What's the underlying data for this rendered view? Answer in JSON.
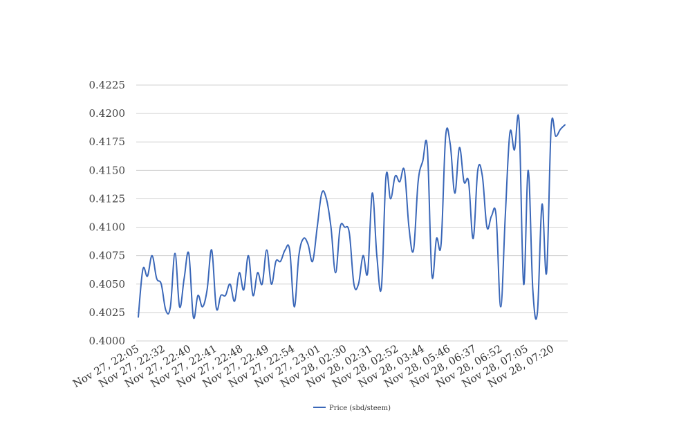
{
  "chart_data": {
    "type": "line",
    "title": "",
    "xlabel": "",
    "ylabel": "",
    "ylim": [
      0.4,
      0.4225
    ],
    "yticks": [
      "0.4000",
      "0.4025",
      "0.4050",
      "0.4075",
      "0.4100",
      "0.4125",
      "0.4150",
      "0.4175",
      "0.4200",
      "0.4225"
    ],
    "xtick_labels": [
      "Nov 27, 22:05",
      "Nov 27, 22:32",
      "Nov 27, 22:40",
      "Nov 27, 22:41",
      "Nov 27, 22:48",
      "Nov 27, 22:49",
      "Nov 27, 22:54",
      "Nov 27, 23:01",
      "Nov 28, 02:30",
      "Nov 28, 02:31",
      "Nov 28, 02:52",
      "Nov 28, 03:44",
      "Nov 28, 05:46",
      "Nov 28, 06:37",
      "Nov 28, 06:52",
      "Nov 28, 07:05",
      "Nov 28, 07:20"
    ],
    "grid": true,
    "legend_position": "bottom-center",
    "series": [
      {
        "name": "Price (sbd/steem)",
        "color": "#3a67b8",
        "values": [
          0.4021,
          0.4063,
          0.4057,
          0.4075,
          0.4055,
          0.405,
          0.4027,
          0.403,
          0.4077,
          0.403,
          0.4055,
          0.4077,
          0.4021,
          0.404,
          0.403,
          0.4045,
          0.408,
          0.4029,
          0.404,
          0.404,
          0.405,
          0.4035,
          0.406,
          0.4045,
          0.4075,
          0.404,
          0.406,
          0.405,
          0.408,
          0.405,
          0.407,
          0.407,
          0.408,
          0.408,
          0.403,
          0.4075,
          0.409,
          0.4085,
          0.407,
          0.41,
          0.413,
          0.4125,
          0.41,
          0.406,
          0.41,
          0.41,
          0.4095,
          0.405,
          0.405,
          0.4075,
          0.406,
          0.413,
          0.4075,
          0.4047,
          0.4145,
          0.4125,
          0.4145,
          0.414,
          0.415,
          0.41,
          0.408,
          0.414,
          0.4158,
          0.417,
          0.4058,
          0.409,
          0.4085,
          0.418,
          0.4173,
          0.413,
          0.417,
          0.414,
          0.414,
          0.409,
          0.415,
          0.4145,
          0.41,
          0.411,
          0.411,
          0.403,
          0.411,
          0.4183,
          0.4168,
          0.4193,
          0.405,
          0.415,
          0.4045,
          0.4025,
          0.412,
          0.406,
          0.4188,
          0.418,
          0.4186,
          0.419
        ]
      }
    ]
  }
}
